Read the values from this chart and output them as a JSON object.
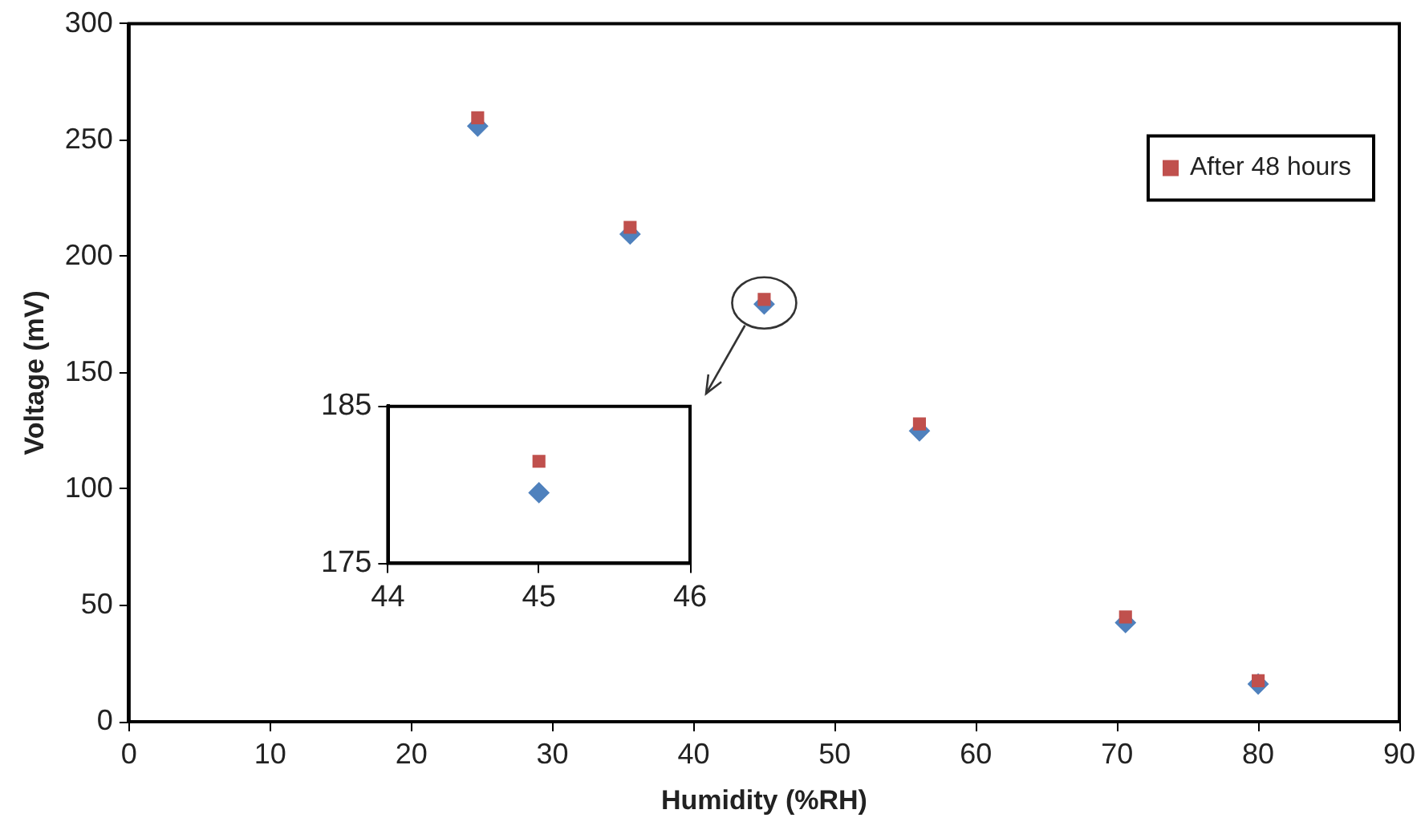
{
  "chart_data": [
    {
      "type": "scatter",
      "xlabel": "Humidity (%RH)",
      "ylabel": "Voltage (mV)",
      "xlim": [
        0,
        90
      ],
      "xticks": [
        0,
        10,
        20,
        30,
        40,
        50,
        60,
        70,
        80,
        90
      ],
      "ylim": [
        0,
        300
      ],
      "yticks": [
        0,
        50,
        100,
        150,
        200,
        250,
        300
      ],
      "grid": false,
      "legend": "top right",
      "series": [
        {
          "color": "#4f81bd",
          "marker": "diamond",
          "x": [
            24.7,
            35.5,
            45,
            56,
            70.6,
            80
          ],
          "values": [
            256,
            209.6,
            179.5,
            125,
            42.6,
            16.2
          ]
        },
        {
          "name": "After 48 hours",
          "color": "#c0504d",
          "marker": "square",
          "x": [
            24.7,
            35.5,
            45,
            56,
            70.6,
            80
          ],
          "values": [
            259.6,
            212.5,
            181.5,
            128,
            45,
            17.6
          ]
        }
      ]
    },
    {
      "type": "scatter",
      "xlim": [
        44,
        46
      ],
      "xticks": [
        44,
        45,
        46
      ],
      "ylim": [
        175,
        185
      ],
      "yticks": [
        175,
        185
      ],
      "grid": false,
      "legend": false,
      "series": [
        {
          "color": "#4f81bd",
          "marker": "diamond",
          "x": [
            45
          ],
          "values": [
            179.5
          ]
        },
        {
          "color": "#c0504d",
          "marker": "square",
          "x": [
            45
          ],
          "values": [
            181.5
          ]
        }
      ]
    }
  ]
}
